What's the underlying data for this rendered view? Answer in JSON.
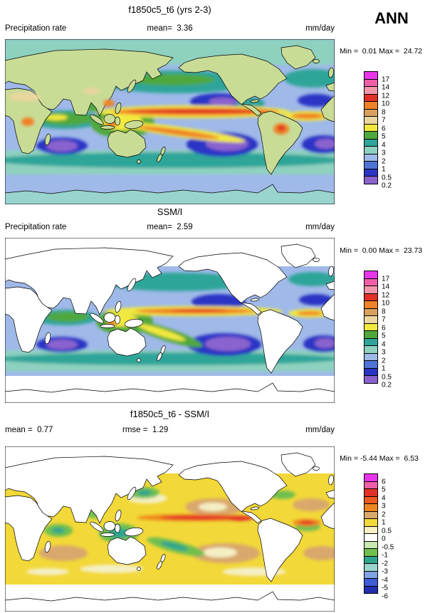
{
  "header": {
    "season": "ANN"
  },
  "panels": [
    {
      "title": "f1850c5_t6 (yrs 2-3)",
      "left_label": "Precipitation rate",
      "mean": "mean=  3.36",
      "units": "mm/day",
      "minmax": "Min =  0.01 Max =  24.72",
      "colorbar": {
        "ticks": [
          "17",
          "14",
          "12",
          "10",
          "8",
          "7",
          "6",
          "5",
          "4",
          "3",
          "2",
          "1",
          "0.5",
          "0.2"
        ],
        "colors": [
          "#e935e9",
          "#ef5fa7",
          "#f397ad",
          "#e23028",
          "#f08228",
          "#d9a05f",
          "#ebd6a0",
          "#f2e93f",
          "#4fa83d",
          "#2fa599",
          "#8ed1bf",
          "#9fb9e8",
          "#4f74d6",
          "#2a35c5",
          "#8a63ce"
        ]
      }
    },
    {
      "title": "SSM/I",
      "left_label": "Precipitation rate",
      "mean": "mean=  2.59",
      "units": "mm/day",
      "minmax": "Min =  0.00 Max =  23.73",
      "colorbar": {
        "ticks": [
          "17",
          "14",
          "12",
          "10",
          "8",
          "7",
          "6",
          "5",
          "4",
          "3",
          "2",
          "1",
          "0.5",
          "0.2"
        ],
        "colors": [
          "#e935e9",
          "#ef5fa7",
          "#f397ad",
          "#e23028",
          "#f08228",
          "#d9a05f",
          "#ebd6a0",
          "#f2e93f",
          "#4fa83d",
          "#2fa599",
          "#8ed1bf",
          "#9fb9e8",
          "#4f74d6",
          "#2a35c5",
          "#8a63ce"
        ]
      }
    },
    {
      "title": "f1850c5_t6 - SSM/I",
      "mean": "mean =  0.77",
      "rmse": "rmse =  1.29",
      "units": "mm/day",
      "minmax": "Min = -5.44 Max =  6.53",
      "colorbar": {
        "ticks": [
          "6",
          "5",
          "4",
          "3",
          "2",
          "1",
          "0.5",
          "0",
          "-0.5",
          "-1",
          "-2",
          "-3",
          "-4",
          "-5",
          "-6"
        ],
        "colors": [
          "#e935e9",
          "#ef5fa7",
          "#e23028",
          "#ed5a22",
          "#f0861f",
          "#d9a86c",
          "#f2d838",
          "#f5efc4",
          "#ffffff",
          "#c8e8b0",
          "#6fbf4f",
          "#2fa58f",
          "#9ad4ce",
          "#7fa3e3",
          "#3f5bd6",
          "#2230b0"
        ]
      }
    }
  ],
  "chart_data": [
    {
      "type": "heatmap",
      "title": "f1850c5_t6 (yrs 2-3)",
      "variable": "Precipitation rate",
      "season": "ANN",
      "units": "mm/day",
      "mean": 3.36,
      "min": 0.01,
      "max": 24.72,
      "contour_levels": [
        0.2,
        0.5,
        1,
        2,
        3,
        4,
        5,
        6,
        7,
        8,
        10,
        12,
        14,
        17
      ],
      "palette_low_to_high": [
        "#8a63ce",
        "#2a35c5",
        "#4f74d6",
        "#9fb9e8",
        "#8ed1bf",
        "#2fa599",
        "#4fa83d",
        "#f2e93f",
        "#ebd6a0",
        "#d9a05f",
        "#f08228",
        "#e23028",
        "#f397ad",
        "#ef5fa7",
        "#e935e9"
      ],
      "legend_position": "right",
      "projection": "global latitude-longitude map"
    },
    {
      "type": "heatmap",
      "title": "SSM/I",
      "variable": "Precipitation rate",
      "season": "ANN",
      "units": "mm/day",
      "mean": 2.59,
      "min": 0.0,
      "max": 23.73,
      "contour_levels": [
        0.2,
        0.5,
        1,
        2,
        3,
        4,
        5,
        6,
        7,
        8,
        10,
        12,
        14,
        17
      ],
      "palette_low_to_high": [
        "#8a63ce",
        "#2a35c5",
        "#4f74d6",
        "#9fb9e8",
        "#8ed1bf",
        "#2fa599",
        "#4fa83d",
        "#f2e93f",
        "#ebd6a0",
        "#d9a05f",
        "#f08228",
        "#e23028",
        "#f397ad",
        "#ef5fa7",
        "#e935e9"
      ],
      "legend_position": "right",
      "projection": "global latitude-longitude map, ocean-only data"
    },
    {
      "type": "heatmap",
      "title": "f1850c5_t6 - SSM/I",
      "season": "ANN",
      "units": "mm/day",
      "mean": 0.77,
      "rmse": 1.29,
      "min": -5.44,
      "max": 6.53,
      "contour_levels": [
        -6,
        -5,
        -4,
        -3,
        -2,
        -1,
        -0.5,
        0,
        0.5,
        1,
        2,
        3,
        4,
        5,
        6
      ],
      "palette_low_to_high": [
        "#2230b0",
        "#3f5bd6",
        "#7fa3e3",
        "#9ad4ce",
        "#2fa58f",
        "#6fbf4f",
        "#c8e8b0",
        "#ffffff",
        "#f5efc4",
        "#f2d838",
        "#d9a86c",
        "#f0861f",
        "#ed5a22",
        "#e23028",
        "#ef5fa7",
        "#e935e9"
      ],
      "legend_position": "right",
      "projection": "global latitude-longitude map, ocean-only data"
    }
  ]
}
